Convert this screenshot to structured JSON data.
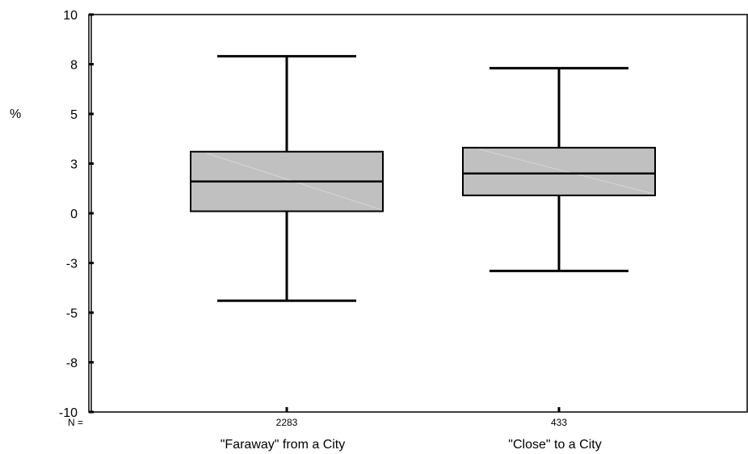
{
  "chart_data": {
    "type": "boxplot",
    "ylabel": "%",
    "ylim": [
      -10,
      10
    ],
    "yticks": [
      {
        "value": 10,
        "label": "10"
      },
      {
        "value": 7.5,
        "label": "8"
      },
      {
        "value": 5,
        "label": "5"
      },
      {
        "value": 2.5,
        "label": "3"
      },
      {
        "value": 0,
        "label": "0"
      },
      {
        "value": -2.5,
        "label": "-3"
      },
      {
        "value": -5,
        "label": "-5"
      },
      {
        "value": -7.5,
        "label": "-8"
      },
      {
        "value": -10,
        "label": "-10"
      }
    ],
    "n_prefix": "N =",
    "groups": [
      {
        "category": "\"Faraway\" from a City",
        "n": "2283",
        "whisker_low": -4.4,
        "q1": 0.1,
        "median": 1.6,
        "q3": 3.1,
        "whisker_high": 7.9
      },
      {
        "category": "\"Close\" to a City",
        "n": "433",
        "whisker_low": -2.9,
        "q1": 0.9,
        "median": 2.0,
        "q3": 3.3,
        "whisker_high": 7.3
      }
    ],
    "box_fill": "#c0c0c0",
    "line_color": "#000000"
  }
}
